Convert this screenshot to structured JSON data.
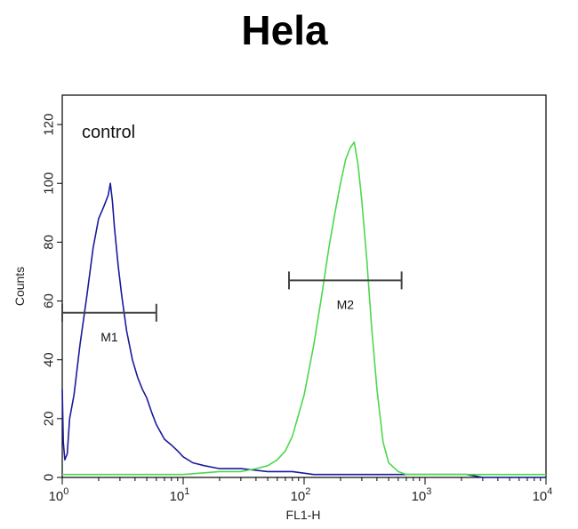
{
  "chart_data": {
    "type": "line",
    "title": "Hela",
    "xlabel": "FL1-H",
    "ylabel": "Counts",
    "x_scale": "log",
    "xlim": [
      1,
      10000
    ],
    "ylim": [
      0,
      130
    ],
    "y_ticks": [
      0,
      20,
      40,
      60,
      80,
      100,
      120
    ],
    "x_ticks": [
      {
        "value": 1,
        "base": "10",
        "exp": "0"
      },
      {
        "value": 10,
        "base": "10",
        "exp": "1"
      },
      {
        "value": 100,
        "base": "10",
        "exp": "2"
      },
      {
        "value": 1000,
        "base": "10",
        "exp": "3"
      },
      {
        "value": 10000,
        "base": "10",
        "exp": "4"
      }
    ],
    "annotation": "control",
    "series": [
      {
        "color": "#1a1a9c",
        "x": [
          1.0,
          1.02,
          1.05,
          1.1,
          1.15,
          1.25,
          1.4,
          1.6,
          1.8,
          2.0,
          2.2,
          2.4,
          2.5,
          2.6,
          2.7,
          2.9,
          3.1,
          3.4,
          3.8,
          4.2,
          4.6,
          5.0,
          5.5,
          6.0,
          7.0,
          8.0,
          9.0,
          10,
          12,
          15,
          20,
          30,
          50,
          80,
          120,
          200,
          400,
          1000,
          2100,
          2200,
          3000,
          10000
        ],
        "y": [
          30,
          12,
          6,
          8,
          20,
          28,
          45,
          62,
          78,
          88,
          92,
          96,
          100,
          94,
          85,
          72,
          62,
          50,
          40,
          34,
          30,
          27,
          22,
          18,
          13,
          11,
          9,
          7,
          5,
          4,
          3,
          3,
          2,
          2,
          1,
          1,
          1,
          1,
          1,
          1,
          0,
          0
        ]
      },
      {
        "color": "#4cd84c",
        "x": [
          1.0,
          2,
          5,
          10,
          20,
          30,
          40,
          50,
          60,
          70,
          80,
          100,
          120,
          140,
          160,
          180,
          200,
          220,
          240,
          260,
          280,
          300,
          330,
          360,
          400,
          450,
          500,
          600,
          700,
          1000,
          3000,
          10000
        ],
        "y": [
          1,
          1,
          1,
          1,
          2,
          2,
          3,
          4,
          6,
          9,
          14,
          28,
          45,
          62,
          78,
          90,
          100,
          108,
          112,
          114,
          106,
          94,
          74,
          52,
          30,
          12,
          5,
          2,
          1,
          1,
          1,
          1
        ]
      }
    ],
    "markers": [
      {
        "label": "M1",
        "x_start": 1.0,
        "x_end": 6.0,
        "y": 56
      },
      {
        "label": "M2",
        "x_start": 75,
        "x_end": 640,
        "y": 67
      }
    ]
  }
}
